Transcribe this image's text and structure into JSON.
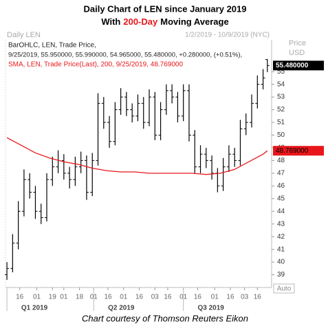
{
  "chart_data": {
    "type": "ohlc",
    "title": "Daily Chart of LEN since January 2019",
    "subtitle_parts": [
      "With",
      "200-Day",
      "Moving Average"
    ],
    "header_left": "Daily LEN",
    "header_right": "1/2/2019 - 10/9/2019 (NYC)",
    "axis_title": [
      "Price",
      "USD"
    ],
    "legend_lines": [
      "BarOHLC, LEN, Trade Price,",
      "9/25/2019, 55.950000, 55.990000, 54.965000, 55.480000, +0.280000, (+0.51%),",
      "SMA, LEN, Trade Price(Last), 200, 9/25/2019, 48.769000"
    ],
    "auto_label": "Auto",
    "footer": "Chart courtesy of Thomson Reuters Eikon",
    "ylim": [
      38,
      57.5
    ],
    "yticks": [
      39,
      40,
      41,
      42,
      43,
      44,
      45,
      46,
      47,
      48,
      49,
      50,
      51,
      52,
      53,
      54,
      55
    ],
    "xlim": [
      -1,
      186
    ],
    "xticks": [
      {
        "value": 9,
        "label": "16"
      },
      {
        "value": 21,
        "label": "01"
      },
      {
        "value": 32,
        "label": "19"
      },
      {
        "value": 40,
        "label": "01"
      },
      {
        "value": 51,
        "label": "18"
      },
      {
        "value": 61,
        "label": "01"
      },
      {
        "value": 71,
        "label": "16"
      },
      {
        "value": 82,
        "label": "01"
      },
      {
        "value": 93,
        "label": "16"
      },
      {
        "value": 104,
        "label": "03"
      },
      {
        "value": 113,
        "label": "16"
      },
      {
        "value": 124,
        "label": "01"
      },
      {
        "value": 134,
        "label": "16"
      },
      {
        "value": 146,
        "label": "01"
      },
      {
        "value": 157,
        "label": "16"
      },
      {
        "value": 167,
        "label": "03"
      },
      {
        "value": 176,
        "label": "16"
      }
    ],
    "quarters": [
      {
        "value": 0,
        "label": "Q1 2019"
      },
      {
        "value": 61,
        "label": "Q2 2019"
      },
      {
        "value": 124,
        "label": "Q3 2019"
      }
    ],
    "ohlc": {
      "name": "LEN",
      "color": "#000000",
      "x": [
        0,
        4,
        8,
        12,
        16,
        20,
        24,
        28,
        32,
        36,
        40,
        44,
        48,
        52,
        56,
        60,
        64,
        68,
        72,
        76,
        80,
        84,
        88,
        92,
        96,
        100,
        104,
        108,
        112,
        116,
        120,
        124,
        128,
        132,
        136,
        140,
        144,
        148,
        152,
        156,
        160,
        164,
        168,
        172,
        176,
        180,
        183
      ],
      "open": [
        39,
        39.5,
        41.5,
        44,
        46.5,
        45.5,
        44,
        43.5,
        46.5,
        47.5,
        48,
        47,
        46.5,
        47.5,
        48,
        45.5,
        48,
        52.5,
        51,
        49.5,
        52,
        53,
        52,
        51.5,
        52.5,
        51,
        53,
        50,
        52,
        53.5,
        53,
        51.5,
        53.5,
        50,
        47.5,
        48.5,
        48,
        47,
        46,
        47.5,
        48.5,
        48,
        50.5,
        51,
        52.5,
        54,
        55.95
      ],
      "high": [
        40,
        42.2,
        44.8,
        47.3,
        47,
        46,
        44.6,
        47,
        48.3,
        48.8,
        48.5,
        47.5,
        48.3,
        48.7,
        48.4,
        48.6,
        53.3,
        53,
        51.5,
        52.6,
        53.7,
        53.4,
        52.5,
        53.2,
        53,
        53.6,
        53.4,
        52.6,
        54,
        54,
        53.4,
        54,
        54,
        50.4,
        49.2,
        49,
        48.4,
        47.4,
        48.2,
        49.2,
        49,
        51.2,
        51.7,
        53.2,
        54.7,
        55.2,
        55.99
      ],
      "low": [
        38.6,
        39.2,
        41,
        43.6,
        45,
        43.4,
        43,
        43.2,
        46,
        47,
        46.5,
        45.8,
        46,
        47,
        44.9,
        45.2,
        47.6,
        50.5,
        49,
        49.2,
        51.6,
        51.5,
        51,
        51.1,
        50.5,
        50.7,
        49.6,
        49.6,
        51.6,
        52.5,
        51,
        51.1,
        49.5,
        47,
        47,
        47.4,
        46.5,
        45.5,
        45.6,
        47.1,
        47.5,
        47.6,
        50,
        50.6,
        52.1,
        53.6,
        54.965
      ],
      "close": [
        39.5,
        41.5,
        44,
        46.5,
        45.5,
        44,
        43.5,
        46.5,
        47.5,
        48,
        47,
        46.5,
        47.5,
        48,
        45.5,
        48,
        52.5,
        51,
        49.5,
        52,
        53,
        52,
        51.5,
        52.5,
        51,
        53,
        50,
        52,
        53.5,
        53,
        51.5,
        53.5,
        50,
        47.5,
        48.5,
        48,
        47,
        46,
        47.5,
        48.5,
        48,
        50.5,
        51,
        52.5,
        54,
        54.5,
        55.48
      ],
      "last_label": "55.480000"
    },
    "sma": {
      "name": "SMA",
      "color": "#e8161b",
      "x": [
        0,
        10,
        20,
        30,
        40,
        50,
        60,
        70,
        80,
        90,
        100,
        110,
        120,
        130,
        140,
        150,
        160,
        170,
        180,
        183
      ],
      "values": [
        49.8,
        49.2,
        48.6,
        48.2,
        47.9,
        47.7,
        47.4,
        47.2,
        47.1,
        47.1,
        47.0,
        47.0,
        47.0,
        47.0,
        46.9,
        47.0,
        47.3,
        47.9,
        48.5,
        48.769
      ],
      "last_label": "48.769000"
    }
  }
}
